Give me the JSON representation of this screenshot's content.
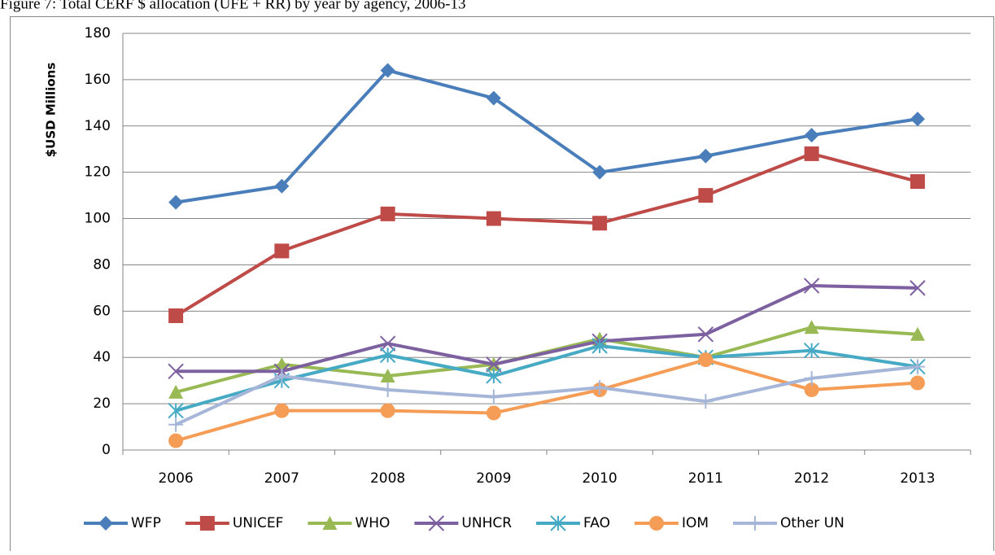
{
  "chart_data": {
    "type": "line",
    "title": "Figure 7: Total CERF $ allocation (UFE + RR) by year by agency, 2006-13",
    "y_label": "$USD Millions",
    "categories": [
      "2006",
      "2007",
      "2008",
      "2009",
      "2010",
      "2011",
      "2012",
      "2013"
    ],
    "series": [
      {
        "name": "WFP",
        "color": "#4a7ebb",
        "marker": "diamond",
        "values": [
          107,
          114,
          164,
          152,
          120,
          127,
          136,
          143
        ]
      },
      {
        "name": "UNICEF",
        "color": "#be4b48",
        "marker": "square",
        "values": [
          58,
          86,
          102,
          100,
          98,
          110,
          128,
          116
        ]
      },
      {
        "name": "WHO",
        "color": "#98b954",
        "marker": "triangle",
        "values": [
          25,
          37,
          32,
          37,
          48,
          40,
          53,
          50
        ]
      },
      {
        "name": "UNHCR",
        "color": "#7d60a0",
        "marker": "x",
        "values": [
          34,
          34,
          46,
          37,
          47,
          50,
          71,
          70
        ]
      },
      {
        "name": "FAO",
        "color": "#46aac5",
        "marker": "star",
        "values": [
          17,
          30,
          41,
          32,
          45,
          40,
          43,
          36
        ]
      },
      {
        "name": "IOM",
        "color": "#f59d56",
        "marker": "circle",
        "values": [
          4,
          17,
          17,
          16,
          26,
          39,
          26,
          29
        ]
      },
      {
        "name": "Other UN",
        "color": "#a5b6d8",
        "marker": "plus",
        "values": [
          11,
          32,
          26,
          23,
          27,
          21,
          31,
          36
        ]
      }
    ],
    "ylim": [
      0,
      180
    ],
    "yticks": [
      0,
      20,
      40,
      60,
      80,
      100,
      120,
      140,
      160,
      180
    ],
    "grid": true,
    "legend": "bottom"
  }
}
